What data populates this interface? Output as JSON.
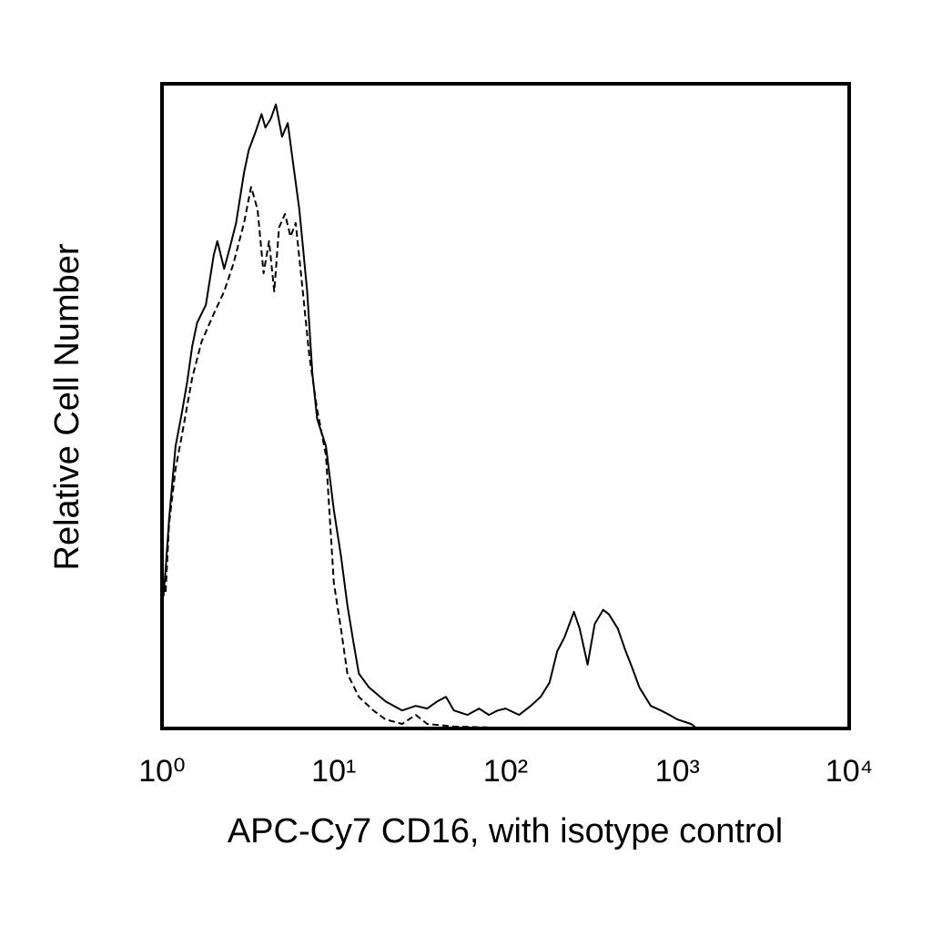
{
  "chart_data": {
    "type": "line",
    "x_label": "APC-Cy7 CD16, with isotype control",
    "y_label": "Relative Cell Number",
    "xscale": "log",
    "xlim": [
      1,
      10000
    ],
    "xticks": [
      {
        "value": 1,
        "label": "10⁰"
      },
      {
        "value": 10,
        "label": "10¹"
      },
      {
        "value": 100,
        "label": "10²"
      },
      {
        "value": 1000,
        "label": "10³"
      },
      {
        "value": 10000,
        "label": "10⁴"
      }
    ],
    "ylim": [
      0,
      100
    ],
    "series": [
      {
        "color": "#000000",
        "dashed": false,
        "x": [
          1.02,
          1.05,
          1.1,
          1.2,
          1.3,
          1.4,
          1.5,
          1.6,
          1.8,
          2.0,
          2.1,
          2.3,
          2.5,
          2.7,
          3.0,
          3.2,
          3.5,
          3.8,
          4.0,
          4.3,
          4.6,
          5.0,
          5.4,
          5.8,
          6.3,
          7.0,
          7.5,
          8.0,
          9.0,
          10,
          11,
          12,
          13,
          14,
          16,
          20,
          25,
          30,
          35,
          40,
          45,
          50,
          60,
          70,
          80,
          90,
          100,
          120,
          140,
          160,
          180,
          200,
          220,
          250,
          270,
          300,
          330,
          370,
          400,
          450,
          500,
          550,
          600,
          700,
          800,
          900,
          1000,
          1200,
          1300
        ],
        "values": [
          20.5,
          24.7,
          32.5,
          43.8,
          48.7,
          53.7,
          59.3,
          62.9,
          65.7,
          73.4,
          75.6,
          71.3,
          74.9,
          78.4,
          86.2,
          89.7,
          92.5,
          95.3,
          93.2,
          94.6,
          96.8,
          91.8,
          93.9,
          87.6,
          80.5,
          67.8,
          55.1,
          48.0,
          43.8,
          33.9,
          26.8,
          19.1,
          13.4,
          8.5,
          6.4,
          4.2,
          2.8,
          3.5,
          3.1,
          4.2,
          4.9,
          2.8,
          2.1,
          3.1,
          2.1,
          2.8,
          3.1,
          2.1,
          3.5,
          4.9,
          7.1,
          12.0,
          14.1,
          18.1,
          15.5,
          9.9,
          16.2,
          18.4,
          17.7,
          15.5,
          12.0,
          9.2,
          6.4,
          3.5,
          2.8,
          2.1,
          1.4,
          0.7,
          0
        ]
      },
      {
        "color": "#000000",
        "dashed": true,
        "x": [
          1.05,
          1.1,
          1.2,
          1.3,
          1.5,
          1.7,
          2.0,
          2.3,
          2.6,
          3.0,
          3.3,
          3.6,
          3.9,
          4.2,
          4.5,
          4.8,
          5.2,
          5.6,
          6.0,
          6.6,
          7.2,
          8.0,
          9.0,
          10,
          11,
          12,
          14,
          17,
          20,
          25,
          30,
          35,
          50,
          100,
          300,
          1000
        ],
        "values": [
          21.2,
          31.8,
          40.3,
          45.2,
          54.4,
          60.0,
          64.3,
          67.8,
          72.0,
          78.4,
          84.0,
          80.5,
          70.6,
          75.6,
          67.8,
          77.7,
          79.8,
          76.3,
          78.4,
          67.8,
          57.9,
          49.4,
          42.4,
          22.6,
          15.5,
          8.5,
          4.9,
          2.8,
          1.4,
          0.7,
          2.1,
          0.7,
          0.3,
          0.1,
          0.1,
          0
        ]
      }
    ]
  }
}
